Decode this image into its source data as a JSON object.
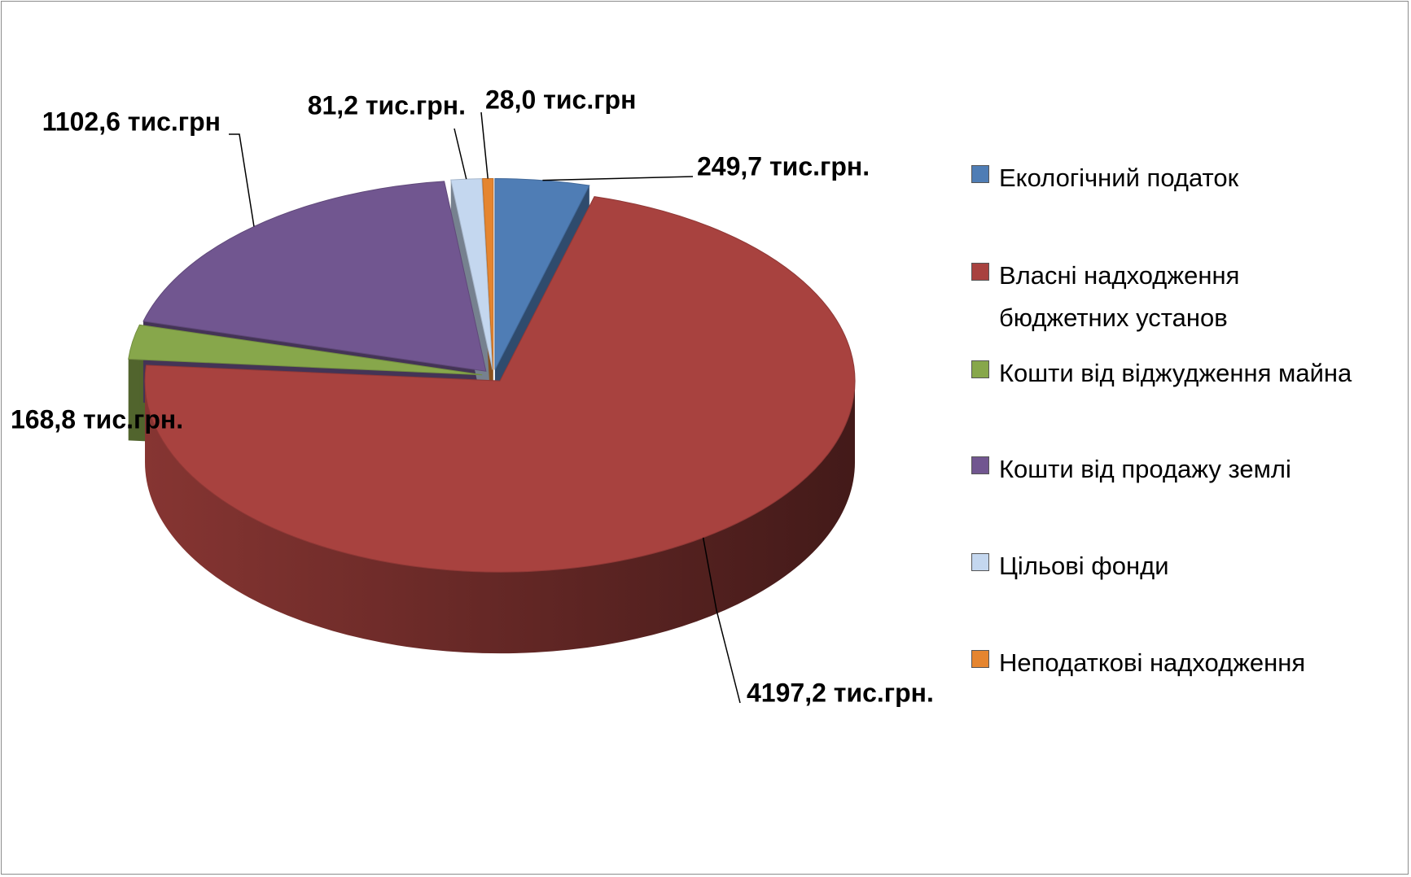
{
  "chart_data": {
    "type": "pie",
    "categories": [
      "Екологічний податок",
      "Власні надходження бюджетних установ",
      "Кошти від віджудження майна",
      "Кошти від продажу землі",
      "Цільові фонди",
      "Неподаткові надходження"
    ],
    "values": [
      249.7,
      4197.2,
      168.8,
      1102.6,
      81.2,
      28.0
    ],
    "value_labels": [
      "249,7 тис.грн.",
      "4197,2 тис.грн.",
      "168,8 тис.грн.",
      "1102,6 тис.грн",
      "81,2 тис.грн.",
      "28,0 тис.грн"
    ],
    "colors": [
      "#4f7db5",
      "#a8423f",
      "#87a74b",
      "#715690",
      "#c4d7ef",
      "#e5852f"
    ],
    "legend": "right"
  }
}
